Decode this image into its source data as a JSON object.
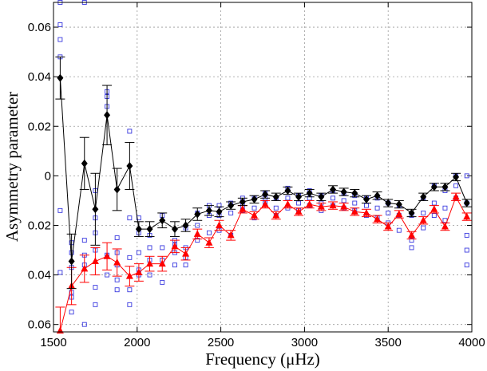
{
  "chart_data": {
    "type": "scatter",
    "title": "",
    "xlabel": "Frequency (μHz)",
    "ylabel": "Asymmetry parameter",
    "xlim": [
      1500,
      4000
    ],
    "ylim": [
      -0.063,
      0.07
    ],
    "xticks": [
      1500,
      2000,
      2500,
      3000,
      3500,
      4000
    ],
    "xtick_labels": [
      "1500",
      "2000",
      "2500",
      "3000",
      "3500",
      "4000"
    ],
    "yticks": [
      0.06,
      0.04,
      0.02,
      0,
      -0.02,
      -0.04,
      -0.06
    ],
    "ytick_labels": [
      "0.06",
      "0.04",
      "0.02",
      "0",
      "0.02",
      "0.04",
      "0.06"
    ],
    "grid": true,
    "grid_style": "dotted",
    "series": [
      {
        "marker": "diamond",
        "color": "#000000",
        "connected": true,
        "x": [
          1540,
          1608,
          1685,
          1750,
          1820,
          1880,
          1955,
          2010,
          2075,
          2150,
          2225,
          2290,
          2360,
          2430,
          2490,
          2560,
          2630,
          2700,
          2765,
          2830,
          2900,
          2965,
          3030,
          3100,
          3170,
          3235,
          3300,
          3370,
          3435,
          3500,
          3565,
          3640,
          3710,
          3775,
          3840,
          3905,
          3970
        ],
        "y": [
          0.0395,
          -0.0345,
          0.005,
          -0.0135,
          0.0245,
          -0.0055,
          0.004,
          -0.0215,
          -0.0215,
          -0.018,
          -0.0215,
          -0.02,
          -0.0155,
          -0.014,
          -0.0145,
          -0.012,
          -0.0105,
          -0.0095,
          -0.0075,
          -0.0085,
          -0.006,
          -0.0085,
          -0.007,
          -0.0085,
          -0.0055,
          -0.0065,
          -0.007,
          -0.0095,
          -0.008,
          -0.011,
          -0.0115,
          -0.015,
          -0.0085,
          -0.0045,
          -0.0045,
          -0.0005,
          -0.011
        ],
        "err": [
          0.0085,
          0.011,
          0.0105,
          0.0145,
          0.012,
          0.0085,
          0.0095,
          0.003,
          0.003,
          0.003,
          0.003,
          0.0025,
          0.0025,
          0.002,
          0.002,
          0.0015,
          0.0015,
          0.0015,
          0.0015,
          0.0015,
          0.0015,
          0.0015,
          0.0015,
          0.0015,
          0.0015,
          0.0015,
          0.0015,
          0.0015,
          0.0015,
          0.0015,
          0.0015,
          0.0015,
          0.0015,
          0.0015,
          0.0015,
          0.0015,
          0.0015
        ]
      },
      {
        "marker": "triangle",
        "color": "#ff0000",
        "connected": true,
        "x": [
          1540,
          1608,
          1685,
          1750,
          1820,
          1880,
          1955,
          2010,
          2075,
          2150,
          2225,
          2290,
          2360,
          2430,
          2490,
          2560,
          2630,
          2700,
          2765,
          2830,
          2900,
          2965,
          3030,
          3100,
          3170,
          3235,
          3300,
          3370,
          3435,
          3500,
          3565,
          3640,
          3710,
          3775,
          3840,
          3905,
          3970
        ],
        "y": [
          -0.0625,
          -0.0445,
          -0.0375,
          -0.0345,
          -0.0325,
          -0.035,
          -0.0405,
          -0.039,
          -0.0355,
          -0.0355,
          -0.0285,
          -0.0315,
          -0.0235,
          -0.027,
          -0.02,
          -0.024,
          -0.0135,
          -0.016,
          -0.0115,
          -0.016,
          -0.0115,
          -0.0145,
          -0.0115,
          -0.0125,
          -0.012,
          -0.0125,
          -0.0145,
          -0.015,
          -0.0175,
          -0.0205,
          -0.0155,
          -0.024,
          -0.018,
          -0.0135,
          -0.0205,
          -0.0085,
          -0.0165
        ],
        "err": [
          0.0095,
          0.0075,
          0.0055,
          0.0055,
          0.0055,
          0.0055,
          0.004,
          0.0035,
          0.003,
          0.003,
          0.0025,
          0.0025,
          0.002,
          0.002,
          0.002,
          0.002,
          0.0015,
          0.0015,
          0.0015,
          0.0015,
          0.0015,
          0.0015,
          0.0015,
          0.0015,
          0.0015,
          0.0015,
          0.0015,
          0.0015,
          0.0015,
          0.0015,
          0.0015,
          0.0015,
          0.0015,
          0.0015,
          0.0015,
          0.0015,
          0.0015
        ]
      },
      {
        "marker": "open-square",
        "color": "#3a3adf",
        "connected": false,
        "x": [
          1540,
          1540,
          1540,
          1540,
          1540,
          1540,
          1608,
          1608,
          1608,
          1608,
          1608,
          1608,
          1685,
          1685,
          1685,
          1685,
          1685,
          1750,
          1750,
          1750,
          1750,
          1750,
          1750,
          1820,
          1820,
          1820,
          1820,
          1820,
          1880,
          1880,
          1880,
          1880,
          1880,
          1955,
          1955,
          1955,
          1955,
          1955,
          2010,
          2010,
          2010,
          2010,
          2010,
          2075,
          2075,
          2075,
          2075,
          2150,
          2150,
          2150,
          2150,
          2225,
          2225,
          2225,
          2225,
          2290,
          2290,
          2290,
          2290,
          2360,
          2360,
          2360,
          2430,
          2430,
          2430,
          2490,
          2490,
          2490,
          2560,
          2560,
          2560,
          2630,
          2630,
          2630,
          2700,
          2700,
          2700,
          2765,
          2765,
          2765,
          2830,
          2830,
          2830,
          2900,
          2900,
          2900,
          2965,
          2965,
          2965,
          3030,
          3030,
          3030,
          3100,
          3100,
          3100,
          3170,
          3170,
          3170,
          3235,
          3235,
          3235,
          3300,
          3300,
          3300,
          3370,
          3370,
          3370,
          3435,
          3435,
          3435,
          3500,
          3500,
          3500,
          3565,
          3565,
          3565,
          3640,
          3640,
          3640,
          3710,
          3710,
          3710,
          3775,
          3775,
          3775,
          3840,
          3840,
          3840,
          3905,
          3905,
          3905,
          3970,
          3970,
          3970,
          3970,
          3970
        ],
        "y": [
          0.07,
          0.061,
          0.055,
          0.048,
          -0.014,
          -0.039,
          -0.027,
          -0.031,
          -0.037,
          -0.047,
          -0.055,
          -0.049,
          0.07,
          -0.026,
          -0.032,
          -0.036,
          -0.06,
          -0.006,
          -0.017,
          -0.023,
          -0.03,
          -0.045,
          -0.052,
          0.034,
          0.032,
          0.028,
          -0.032,
          -0.04,
          -0.025,
          -0.031,
          -0.036,
          -0.042,
          -0.046,
          0.018,
          -0.017,
          -0.033,
          -0.046,
          -0.052,
          -0.017,
          -0.023,
          -0.031,
          -0.038,
          -0.04,
          -0.024,
          -0.029,
          -0.034,
          -0.04,
          -0.016,
          -0.029,
          -0.034,
          -0.043,
          -0.026,
          -0.028,
          -0.031,
          -0.036,
          -0.021,
          -0.029,
          -0.033,
          -0.036,
          -0.015,
          -0.02,
          -0.026,
          -0.012,
          -0.016,
          -0.023,
          -0.012,
          -0.016,
          -0.022,
          -0.011,
          -0.015,
          -0.024,
          -0.009,
          -0.012,
          -0.014,
          -0.009,
          -0.013,
          -0.017,
          -0.007,
          -0.009,
          -0.011,
          -0.009,
          -0.013,
          -0.016,
          -0.005,
          -0.009,
          -0.013,
          -0.008,
          -0.011,
          -0.014,
          -0.006,
          -0.009,
          -0.012,
          -0.008,
          -0.011,
          -0.014,
          -0.006,
          -0.009,
          -0.012,
          -0.007,
          -0.01,
          -0.013,
          -0.008,
          -0.011,
          -0.014,
          -0.009,
          -0.012,
          -0.016,
          -0.009,
          -0.013,
          -0.017,
          -0.011,
          -0.015,
          -0.019,
          -0.012,
          -0.016,
          -0.022,
          -0.016,
          -0.026,
          -0.029,
          -0.009,
          -0.015,
          -0.021,
          -0.004,
          -0.011,
          -0.016,
          -0.006,
          -0.013,
          -0.018,
          0,
          -0.004,
          -0.009,
          0,
          -0.011,
          -0.024,
          -0.03,
          -0.036
        ]
      }
    ]
  }
}
